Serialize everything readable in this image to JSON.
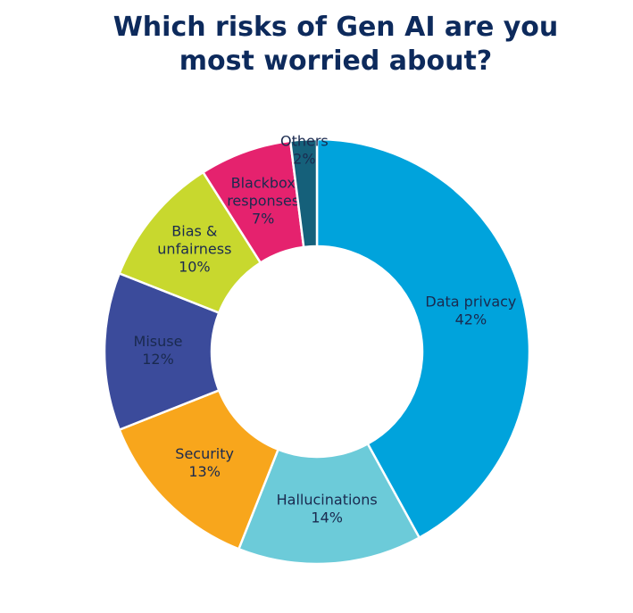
{
  "chart_data": {
    "type": "donut",
    "title": "Which risks of Gen AI are you\nmost worried about?",
    "categories": [
      "Data privacy",
      "Hallucinations",
      "Security",
      "Misuse",
      "Bias &\nunfairness",
      "Blackbox\nresponses",
      "Others"
    ],
    "values": [
      42,
      14,
      13,
      12,
      10,
      7,
      2
    ],
    "value_labels": [
      "42%",
      "14%",
      "13%",
      "12%",
      "10%",
      "7%",
      "2%"
    ],
    "colors": [
      "#00a3dc",
      "#6ccbd9",
      "#f8a61c",
      "#3b4b9b",
      "#c8d82e",
      "#e5226e",
      "#15607a"
    ]
  }
}
